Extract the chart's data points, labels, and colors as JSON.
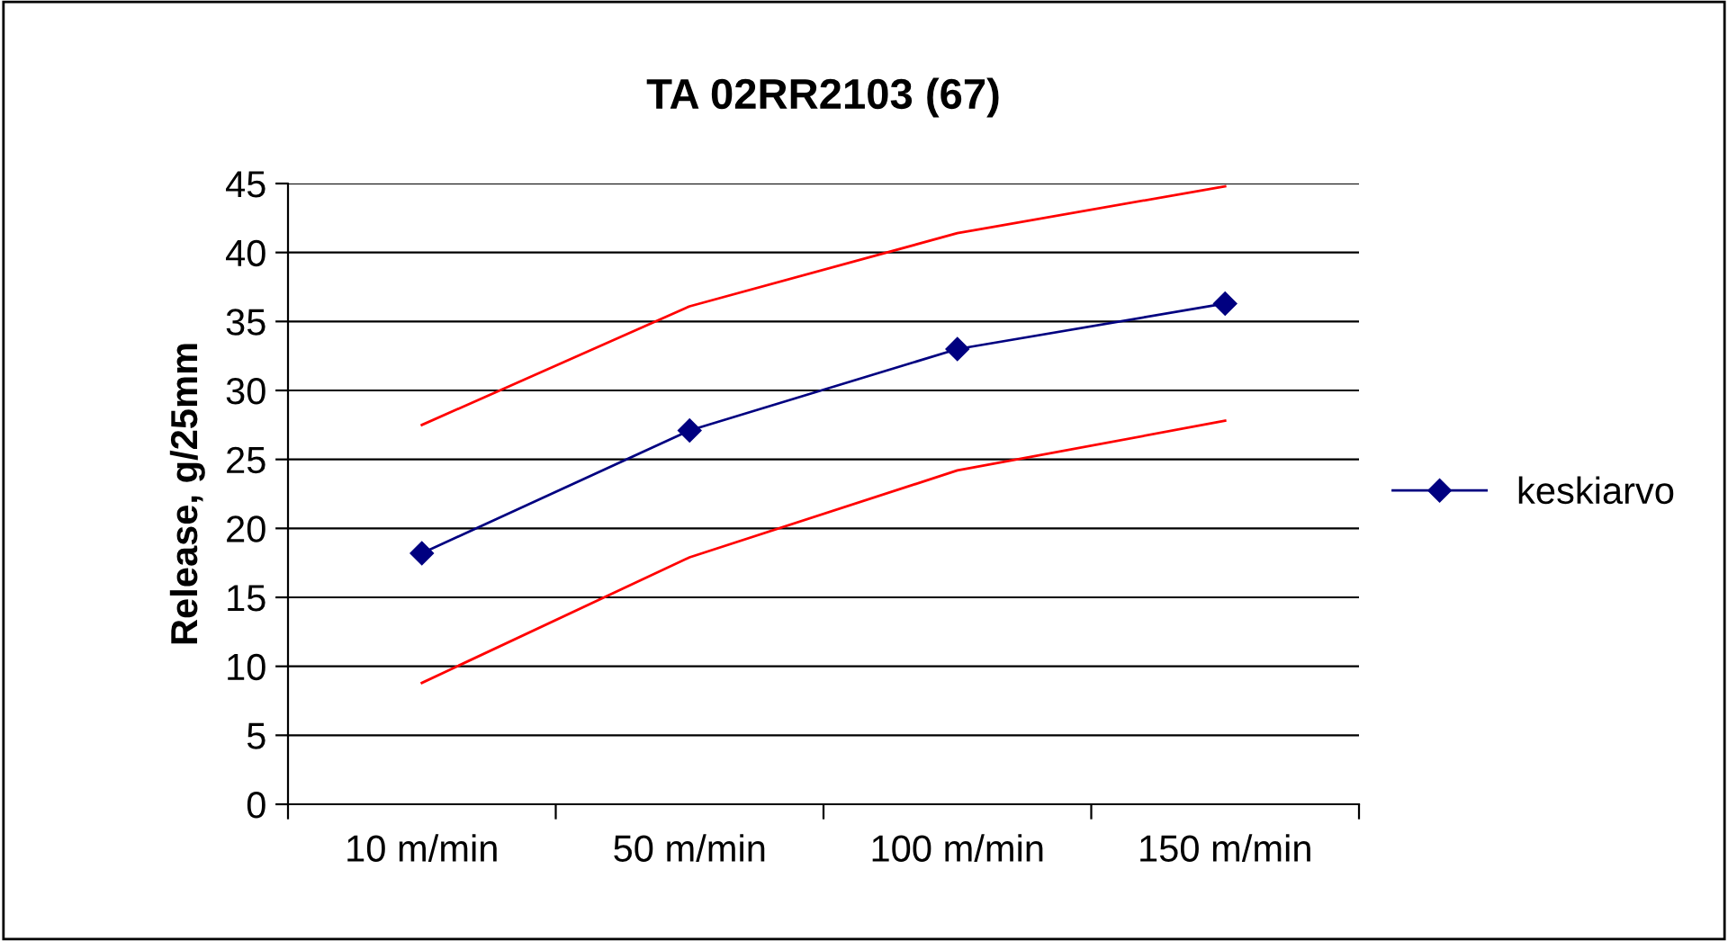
{
  "chart_data": {
    "type": "line",
    "title": "TA 02RR2103 (67)",
    "ylabel": "Release, g/25mm",
    "categories": [
      "10 m/min",
      "50 m/min",
      "100 m/min",
      "150 m/min"
    ],
    "series": [
      {
        "color": "#ff0000",
        "marker": "none",
        "values": [
          27.5,
          36.1,
          41.4,
          44.8
        ]
      },
      {
        "name": "keskiarvo",
        "color": "#000080",
        "marker": "diamond",
        "values": [
          18.2,
          27.1,
          33.0,
          36.3
        ]
      },
      {
        "color": "#ff0000",
        "marker": "none",
        "values": [
          8.8,
          17.9,
          24.2,
          27.8
        ]
      }
    ],
    "ylim": [
      0,
      45
    ],
    "yticks": [
      0,
      5,
      10,
      15,
      20,
      25,
      30,
      35,
      40,
      45
    ],
    "grid": "y",
    "legend": "right",
    "line_style": "solid"
  }
}
